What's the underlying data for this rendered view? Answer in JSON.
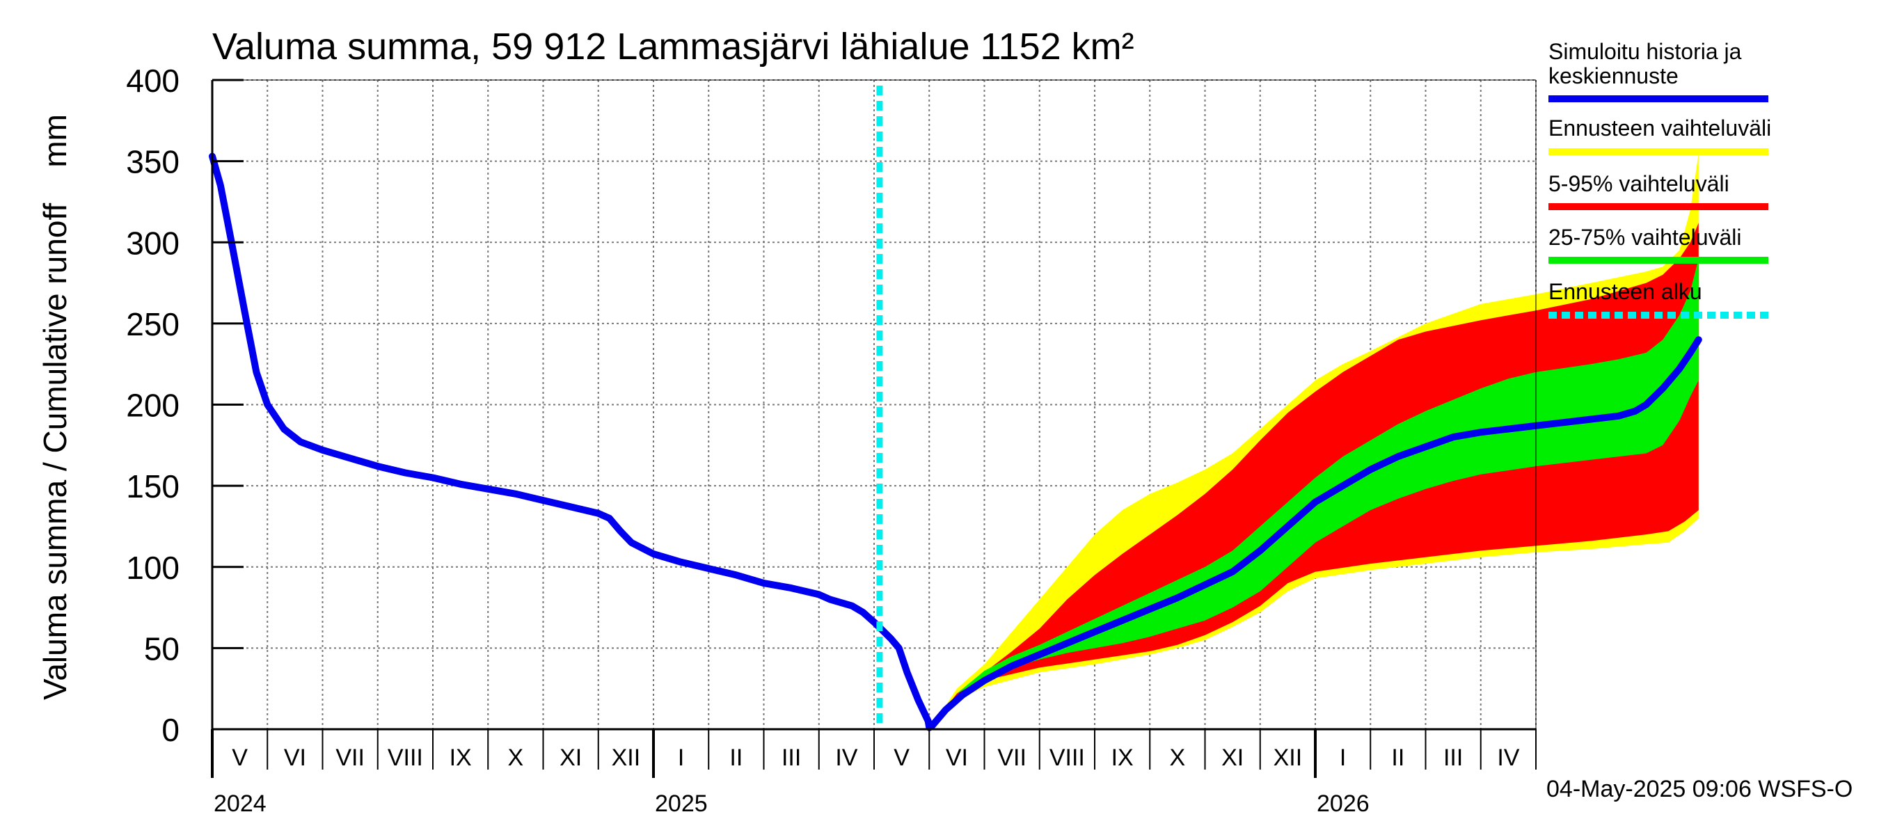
{
  "chart_data": {
    "type": "area",
    "title": "Valuma summa, 59 912 Lammasjärvi lähialue 1152 km²",
    "ylabel": "Valuma summa / Cumulative runoff    mm",
    "ylim": [
      0,
      400
    ],
    "yticks": [
      0,
      50,
      100,
      150,
      200,
      250,
      300,
      350,
      400
    ],
    "x_range_months": [
      0,
      24
    ],
    "months": [
      "V",
      "VI",
      "VII",
      "VIII",
      "IX",
      "X",
      "XI",
      "XII",
      "I",
      "II",
      "III",
      "IV",
      "V",
      "VI",
      "VII",
      "VIII",
      "IX",
      "X",
      "XI",
      "XII",
      "I",
      "II",
      "III",
      "IV"
    ],
    "years": [
      {
        "label": "2024",
        "month_start": 0
      },
      {
        "label": "2025",
        "month_start": 8
      },
      {
        "label": "2026",
        "month_start": 20
      }
    ],
    "forecast_start_month": 12.1,
    "legend": [
      {
        "label": "Simuloitu historia ja\nkeskiennuste",
        "color": "#0000ee",
        "style": "solid"
      },
      {
        "label": "Ennusteen vaihteluväli",
        "color": "#ffff00",
        "style": "solid"
      },
      {
        "label": "5-95% vaihteluväli",
        "color": "#ff0000",
        "style": "solid"
      },
      {
        "label": "25-75% vaihteluväli",
        "color": "#00ee00",
        "style": "solid"
      },
      {
        "label": "Ennusteen alku",
        "color": "#00eeee",
        "style": "dashed"
      }
    ],
    "series": [
      {
        "name": "Simuloitu historia ja keskiennuste",
        "points": [
          [
            0,
            353
          ],
          [
            0.15,
            335
          ],
          [
            0.35,
            300
          ],
          [
            0.6,
            255
          ],
          [
            0.8,
            220
          ],
          [
            1.0,
            200
          ],
          [
            1.3,
            185
          ],
          [
            1.6,
            177
          ],
          [
            2,
            172
          ],
          [
            2.5,
            167
          ],
          [
            3,
            162
          ],
          [
            3.5,
            158
          ],
          [
            4,
            155
          ],
          [
            4.5,
            151
          ],
          [
            5,
            148
          ],
          [
            5.5,
            145
          ],
          [
            6,
            141
          ],
          [
            6.5,
            137
          ],
          [
            7,
            133
          ],
          [
            7.2,
            130
          ],
          [
            7.4,
            122
          ],
          [
            7.6,
            115
          ],
          [
            8,
            108
          ],
          [
            8.5,
            103
          ],
          [
            9,
            99
          ],
          [
            9.5,
            95
          ],
          [
            10,
            90
          ],
          [
            10.5,
            87
          ],
          [
            11,
            83
          ],
          [
            11.2,
            80
          ],
          [
            11.6,
            76
          ],
          [
            11.8,
            72
          ],
          [
            12.0,
            66
          ],
          [
            12.3,
            56
          ],
          [
            12.45,
            50
          ],
          [
            12.6,
            35
          ],
          [
            12.8,
            18
          ],
          [
            12.98,
            5
          ],
          [
            13.0,
            1
          ],
          [
            13.05,
            2
          ],
          [
            13.3,
            12
          ],
          [
            13.6,
            21
          ],
          [
            14,
            30
          ],
          [
            14.5,
            39
          ],
          [
            15,
            46
          ],
          [
            15.5,
            53
          ],
          [
            16,
            60
          ],
          [
            16.5,
            67
          ],
          [
            17,
            74
          ],
          [
            17.5,
            81
          ],
          [
            18,
            89
          ],
          [
            18.5,
            97
          ],
          [
            19,
            110
          ],
          [
            19.5,
            125
          ],
          [
            20,
            140
          ],
          [
            20.5,
            150
          ],
          [
            21,
            160
          ],
          [
            21.5,
            168
          ],
          [
            22,
            174
          ],
          [
            22.5,
            180
          ],
          [
            23,
            183
          ],
          [
            23.5,
            185
          ],
          [
            24,
            187
          ],
          [
            24.5,
            189
          ],
          [
            25,
            191
          ],
          [
            25.5,
            193
          ],
          [
            25.8,
            196
          ],
          [
            26,
            200
          ],
          [
            26.3,
            210
          ],
          [
            26.6,
            222
          ],
          [
            26.8,
            232
          ],
          [
            26.95,
            240
          ]
        ]
      },
      {
        "name": "Ennusteen vaihteluväli",
        "lower": [
          [
            13.05,
            2
          ],
          [
            13.5,
            18
          ],
          [
            14,
            26
          ],
          [
            15,
            35
          ],
          [
            16,
            40
          ],
          [
            17,
            46
          ],
          [
            17.5,
            50
          ],
          [
            18,
            55
          ],
          [
            18.5,
            63
          ],
          [
            19,
            72
          ],
          [
            19.5,
            85
          ],
          [
            20,
            93
          ],
          [
            21,
            98
          ],
          [
            22,
            102
          ],
          [
            23,
            106
          ],
          [
            24,
            109
          ],
          [
            25,
            111
          ],
          [
            26,
            114
          ],
          [
            26.4,
            115
          ],
          [
            26.7,
            122
          ],
          [
            26.95,
            130
          ]
        ],
        "upper": [
          [
            13.05,
            2
          ],
          [
            13.5,
            25
          ],
          [
            14,
            40
          ],
          [
            14.5,
            60
          ],
          [
            15,
            80
          ],
          [
            15.5,
            100
          ],
          [
            16,
            120
          ],
          [
            16.5,
            135
          ],
          [
            17,
            145
          ],
          [
            17.5,
            152
          ],
          [
            18,
            160
          ],
          [
            18.5,
            170
          ],
          [
            19,
            185
          ],
          [
            19.5,
            200
          ],
          [
            20,
            215
          ],
          [
            20.5,
            225
          ],
          [
            21,
            233
          ],
          [
            22,
            250
          ],
          [
            23,
            262
          ],
          [
            24,
            268
          ],
          [
            25,
            275
          ],
          [
            26,
            282
          ],
          [
            26.3,
            285
          ],
          [
            26.6,
            295
          ],
          [
            26.8,
            320
          ],
          [
            26.95,
            355
          ]
        ]
      },
      {
        "name": "5-95% vaihteluväli",
        "lower": [
          [
            13.05,
            2
          ],
          [
            13.5,
            20
          ],
          [
            14,
            30
          ],
          [
            15,
            38
          ],
          [
            16,
            43
          ],
          [
            17,
            48
          ],
          [
            17.5,
            52
          ],
          [
            18,
            58
          ],
          [
            18.5,
            66
          ],
          [
            19,
            76
          ],
          [
            19.5,
            90
          ],
          [
            20,
            97
          ],
          [
            21,
            102
          ],
          [
            22,
            106
          ],
          [
            23,
            110
          ],
          [
            24,
            113
          ],
          [
            25,
            116
          ],
          [
            26,
            120
          ],
          [
            26.4,
            122
          ],
          [
            26.7,
            128
          ],
          [
            26.95,
            135
          ]
        ],
        "upper": [
          [
            13.05,
            2
          ],
          [
            13.5,
            22
          ],
          [
            14,
            35
          ],
          [
            14.5,
            48
          ],
          [
            15,
            62
          ],
          [
            15.5,
            80
          ],
          [
            16,
            95
          ],
          [
            16.5,
            108
          ],
          [
            17,
            120
          ],
          [
            17.5,
            132
          ],
          [
            18,
            145
          ],
          [
            18.5,
            160
          ],
          [
            19,
            178
          ],
          [
            19.5,
            195
          ],
          [
            20,
            208
          ],
          [
            20.5,
            220
          ],
          [
            21,
            230
          ],
          [
            21.5,
            240
          ],
          [
            22,
            245
          ],
          [
            23,
            252
          ],
          [
            24,
            258
          ],
          [
            25,
            265
          ],
          [
            25.5,
            270
          ],
          [
            26,
            275
          ],
          [
            26.3,
            280
          ],
          [
            26.6,
            290
          ],
          [
            26.8,
            300
          ],
          [
            26.95,
            312
          ]
        ]
      },
      {
        "name": "25-75% vaihteluväli",
        "lower": [
          [
            13.05,
            2
          ],
          [
            13.5,
            22
          ],
          [
            14,
            31
          ],
          [
            14.5,
            38
          ],
          [
            15,
            43
          ],
          [
            15.5,
            47
          ],
          [
            16,
            50
          ],
          [
            16.5,
            53
          ],
          [
            17,
            57
          ],
          [
            17.5,
            62
          ],
          [
            18,
            67
          ],
          [
            18.5,
            75
          ],
          [
            19,
            85
          ],
          [
            19.5,
            100
          ],
          [
            20,
            115
          ],
          [
            20.5,
            125
          ],
          [
            21,
            135
          ],
          [
            21.5,
            142
          ],
          [
            22,
            148
          ],
          [
            22.5,
            153
          ],
          [
            23,
            157
          ],
          [
            24,
            162
          ],
          [
            25,
            166
          ],
          [
            25.5,
            168
          ],
          [
            26,
            170
          ],
          [
            26.3,
            175
          ],
          [
            26.6,
            190
          ],
          [
            26.8,
            205
          ],
          [
            26.95,
            215
          ]
        ],
        "upper": [
          [
            13.05,
            2
          ],
          [
            13.5,
            22
          ],
          [
            14,
            36
          ],
          [
            14.5,
            45
          ],
          [
            15,
            52
          ],
          [
            15.5,
            60
          ],
          [
            16,
            68
          ],
          [
            16.5,
            76
          ],
          [
            17,
            84
          ],
          [
            17.5,
            92
          ],
          [
            18,
            100
          ],
          [
            18.5,
            110
          ],
          [
            19,
            125
          ],
          [
            19.5,
            140
          ],
          [
            20,
            155
          ],
          [
            20.5,
            168
          ],
          [
            21,
            178
          ],
          [
            21.5,
            188
          ],
          [
            22,
            196
          ],
          [
            22.5,
            203
          ],
          [
            23,
            210
          ],
          [
            23.5,
            216
          ],
          [
            24,
            220
          ],
          [
            25,
            225
          ],
          [
            25.5,
            228
          ],
          [
            26,
            232
          ],
          [
            26.3,
            240
          ],
          [
            26.6,
            255
          ],
          [
            26.8,
            270
          ],
          [
            26.95,
            290
          ]
        ]
      }
    ]
  },
  "footer": {
    "timestamp": "04-May-2025 09:06 WSFS-O"
  }
}
